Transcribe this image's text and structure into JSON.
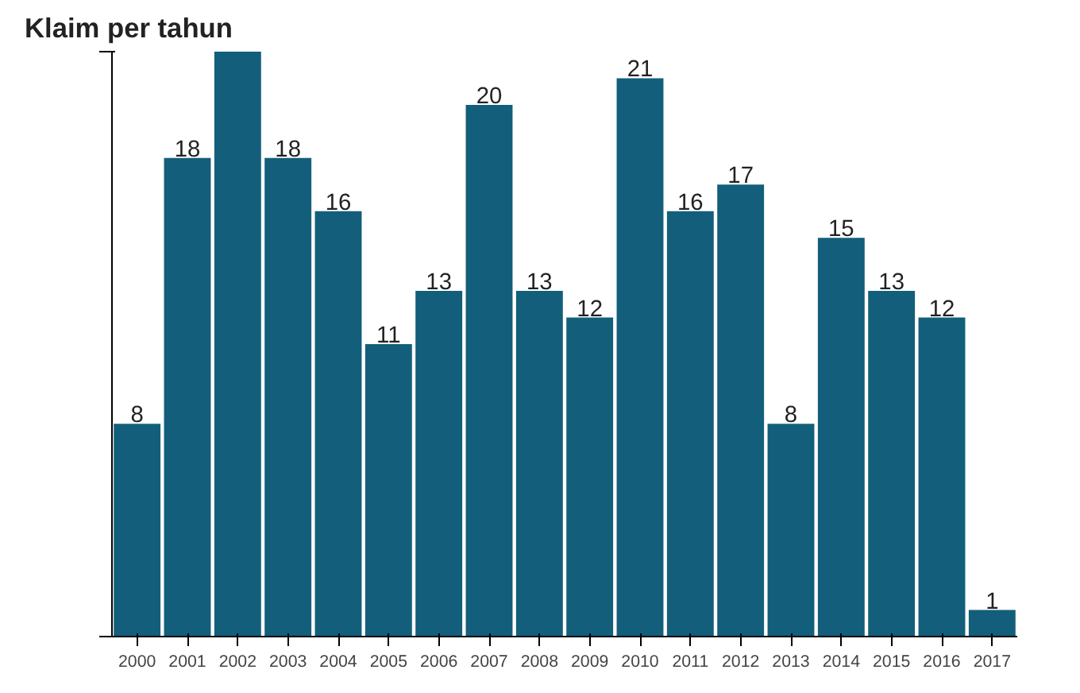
{
  "chart_data": {
    "type": "bar",
    "title": "Klaim per tahun",
    "categories": [
      "2000",
      "2001",
      "2002",
      "2003",
      "2004",
      "2005",
      "2006",
      "2007",
      "2008",
      "2009",
      "2010",
      "2011",
      "2012",
      "2013",
      "2014",
      "2015",
      "2016",
      "2017"
    ],
    "values": [
      8,
      18,
      22,
      18,
      16,
      11,
      13,
      20,
      13,
      12,
      21,
      16,
      17,
      8,
      15,
      13,
      12,
      1
    ],
    "value_labels": [
      "8",
      "18",
      null,
      "18",
      "16",
      "11",
      "13",
      "20",
      "13",
      "12",
      "21",
      "16",
      "17",
      "8",
      "15",
      "13",
      "12",
      "1"
    ],
    "color": "#135e7b",
    "ylim": [
      0,
      22
    ],
    "yticks": [
      {
        "value": 0,
        "label": null
      },
      {
        "value": 22,
        "label": null
      }
    ],
    "grid": false
  }
}
